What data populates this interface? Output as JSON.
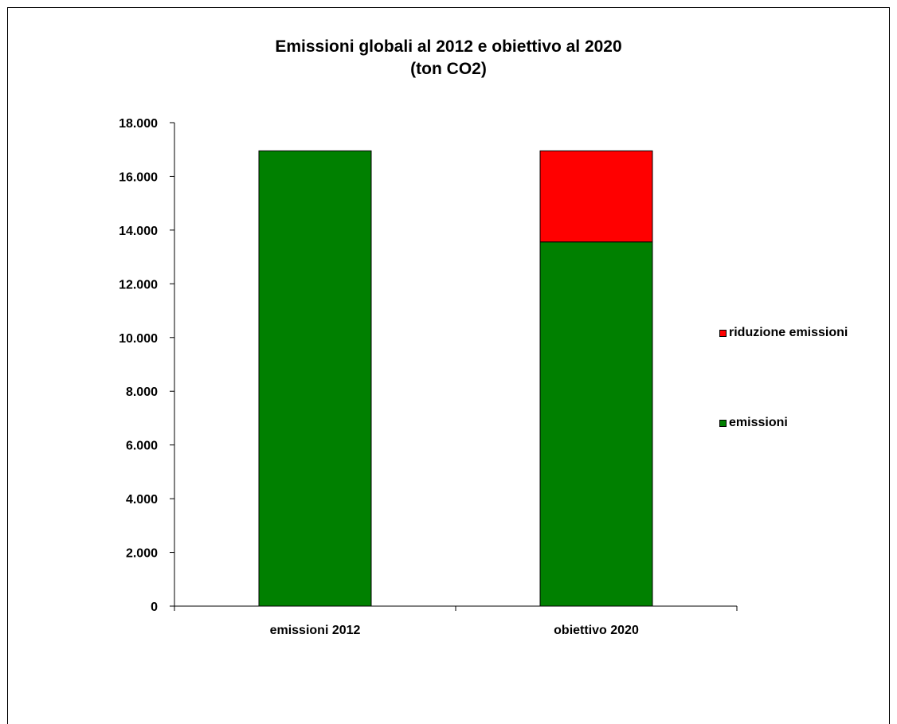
{
  "chart_data": {
    "type": "bar",
    "stacked": true,
    "title": "Emissioni globali al 2012 e obiettivo al 2020",
    "subtitle": "(ton CO2)",
    "categories": [
      "emissioni 2012",
      "obiettivo 2020"
    ],
    "series": [
      {
        "name": "emissioni",
        "color": "#008000",
        "values": [
          16950,
          13560
        ]
      },
      {
        "name": "riduzione emissioni",
        "color": "#ff0000",
        "values": [
          0,
          3390
        ]
      }
    ],
    "ylim": [
      0,
      18000
    ],
    "yticks": [
      0,
      2000,
      4000,
      6000,
      8000,
      10000,
      12000,
      14000,
      16000,
      18000
    ],
    "ytick_labels": [
      "0",
      "2.000",
      "4.000",
      "6.000",
      "8.000",
      "10.000",
      "12.000",
      "14.000",
      "16.000",
      "18.000"
    ],
    "legend_position": "right",
    "grid": false
  }
}
